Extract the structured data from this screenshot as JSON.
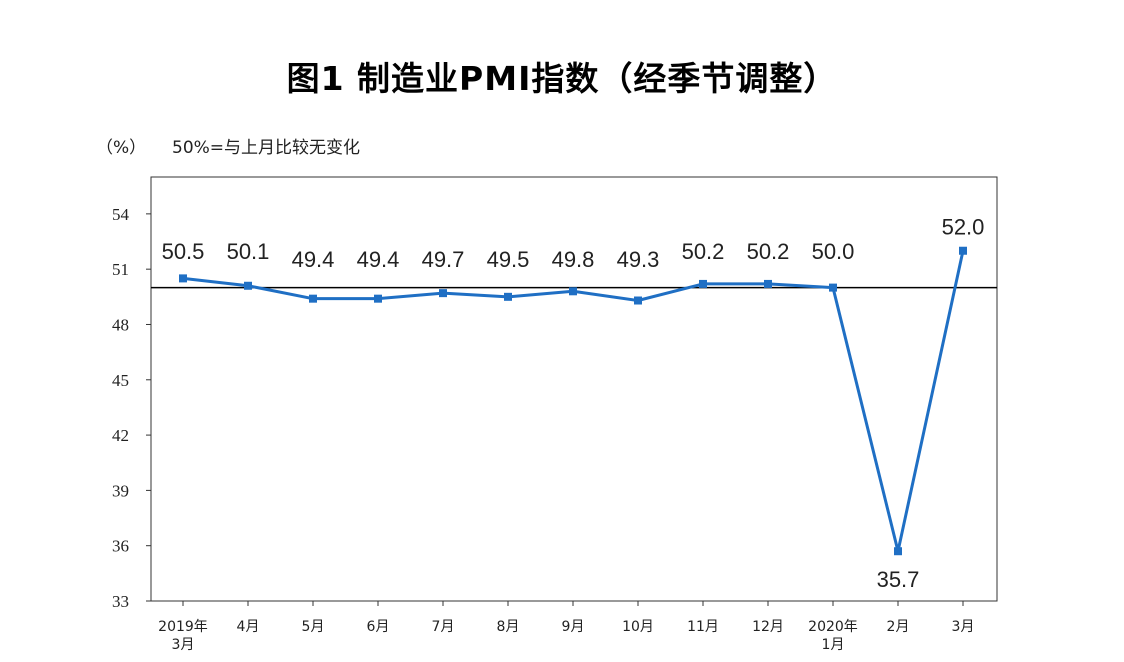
{
  "title": "图1 制造业PMI指数（经季节调整）",
  "y_unit": "（%）",
  "note": "50%=与上月比较无变化",
  "chart_data": {
    "type": "line",
    "categories": [
      [
        "2019年",
        "3月"
      ],
      [
        "4月"
      ],
      [
        "5月"
      ],
      [
        "6月"
      ],
      [
        "7月"
      ],
      [
        "8月"
      ],
      [
        "9月"
      ],
      [
        "10月"
      ],
      [
        "11月"
      ],
      [
        "12月"
      ],
      [
        "2020年",
        "1月"
      ],
      [
        "2月"
      ],
      [
        "3月"
      ]
    ],
    "series": [
      {
        "values": [
          50.5,
          50.1,
          49.4,
          49.4,
          49.7,
          49.5,
          49.8,
          49.3,
          50.2,
          50.2,
          50.0,
          35.7,
          52.0
        ],
        "labels": [
          "50.5",
          "50.1",
          "49.4",
          "49.4",
          "49.7",
          "49.5",
          "49.8",
          "49.3",
          "50.2",
          "50.2",
          "50.0",
          "35.7",
          "52.0"
        ],
        "color": "#1f6fc4"
      }
    ],
    "ylim": [
      33,
      56
    ],
    "yticks": [
      33,
      36,
      39,
      42,
      45,
      48,
      51,
      54
    ],
    "reference_line": 50,
    "grid": false,
    "legend": "none"
  }
}
